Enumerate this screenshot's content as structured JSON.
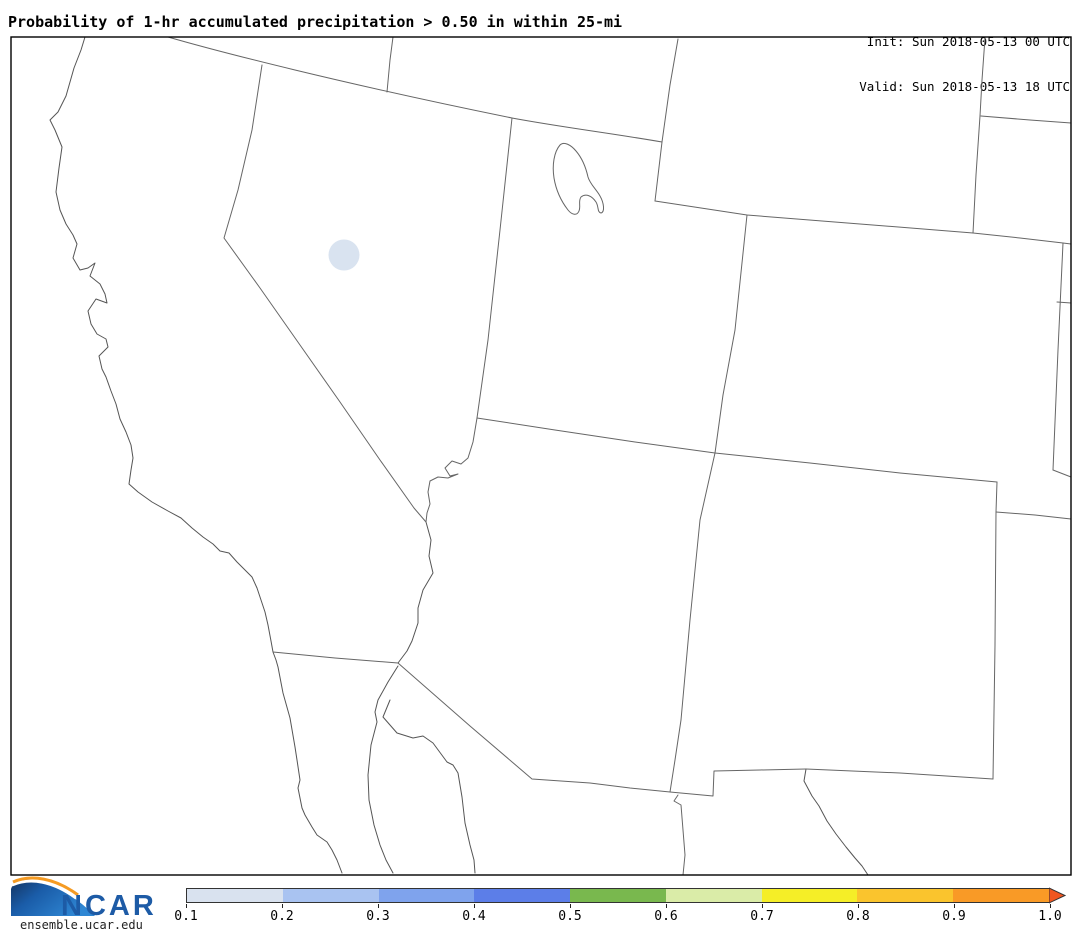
{
  "header": {
    "title": "Probability of 1-hr accumulated precipitation > 0.50 in within 25-mi",
    "init": "Init: Sun 2018-05-13 00 UTC",
    "valid": "Valid: Sun 2018-05-13 18 UTC"
  },
  "map": {
    "region": "Southwestern United States and northern Mexico",
    "precip_contour": {
      "probability_band": "0.1-0.2",
      "fill": "#d9e3f0",
      "location": "central Nevada"
    }
  },
  "colorbar": {
    "tick_labels": [
      "0.1",
      "0.2",
      "0.3",
      "0.4",
      "0.5",
      "0.6",
      "0.7",
      "0.8",
      "0.9",
      "1.0"
    ],
    "segment_colors": [
      "#d9e2ef",
      "#a9c3f1",
      "#7fa3ed",
      "#5c7ee8",
      "#79b84e",
      "#daeca8",
      "#f5ee27",
      "#fac42d",
      "#f99a26"
    ],
    "arrow_color": "#f0561f"
  },
  "footer": {
    "logo_text": "NCAR",
    "url": "ensemble.ucar.edu"
  }
}
